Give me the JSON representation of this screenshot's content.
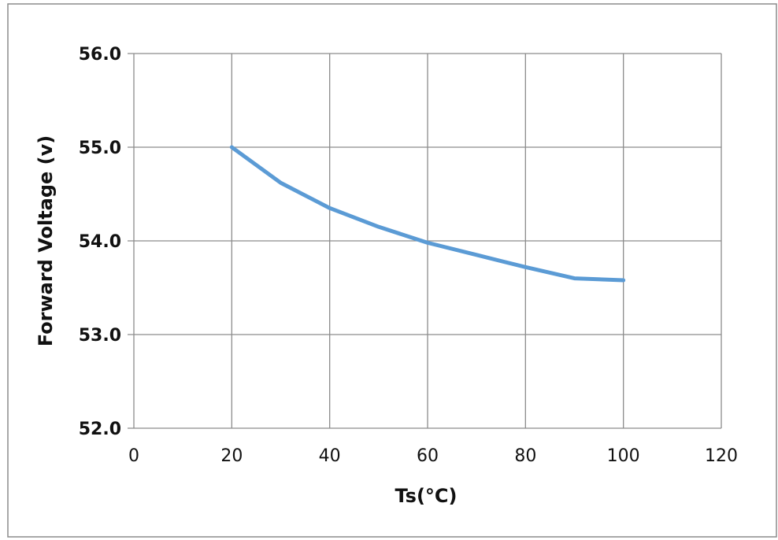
{
  "chart_data": {
    "type": "line",
    "title": "",
    "xlabel": "Ts(°C)",
    "ylabel": "Forward Voltage (v)",
    "xlim": [
      0,
      120
    ],
    "ylim": [
      52.0,
      56.0
    ],
    "x_ticks": [
      "0",
      "20",
      "40",
      "60",
      "80",
      "100",
      "120"
    ],
    "y_ticks": [
      "52.0",
      "53.0",
      "54.0",
      "55.0",
      "56.0"
    ],
    "grid": true,
    "legend": "none",
    "series": [
      {
        "color": "#5b9bd5",
        "x": [
          20,
          30,
          40,
          50,
          60,
          70,
          80,
          90,
          100
        ],
        "y": [
          55.0,
          54.62,
          54.35,
          54.15,
          53.98,
          53.85,
          53.72,
          53.6,
          53.58
        ]
      }
    ]
  }
}
